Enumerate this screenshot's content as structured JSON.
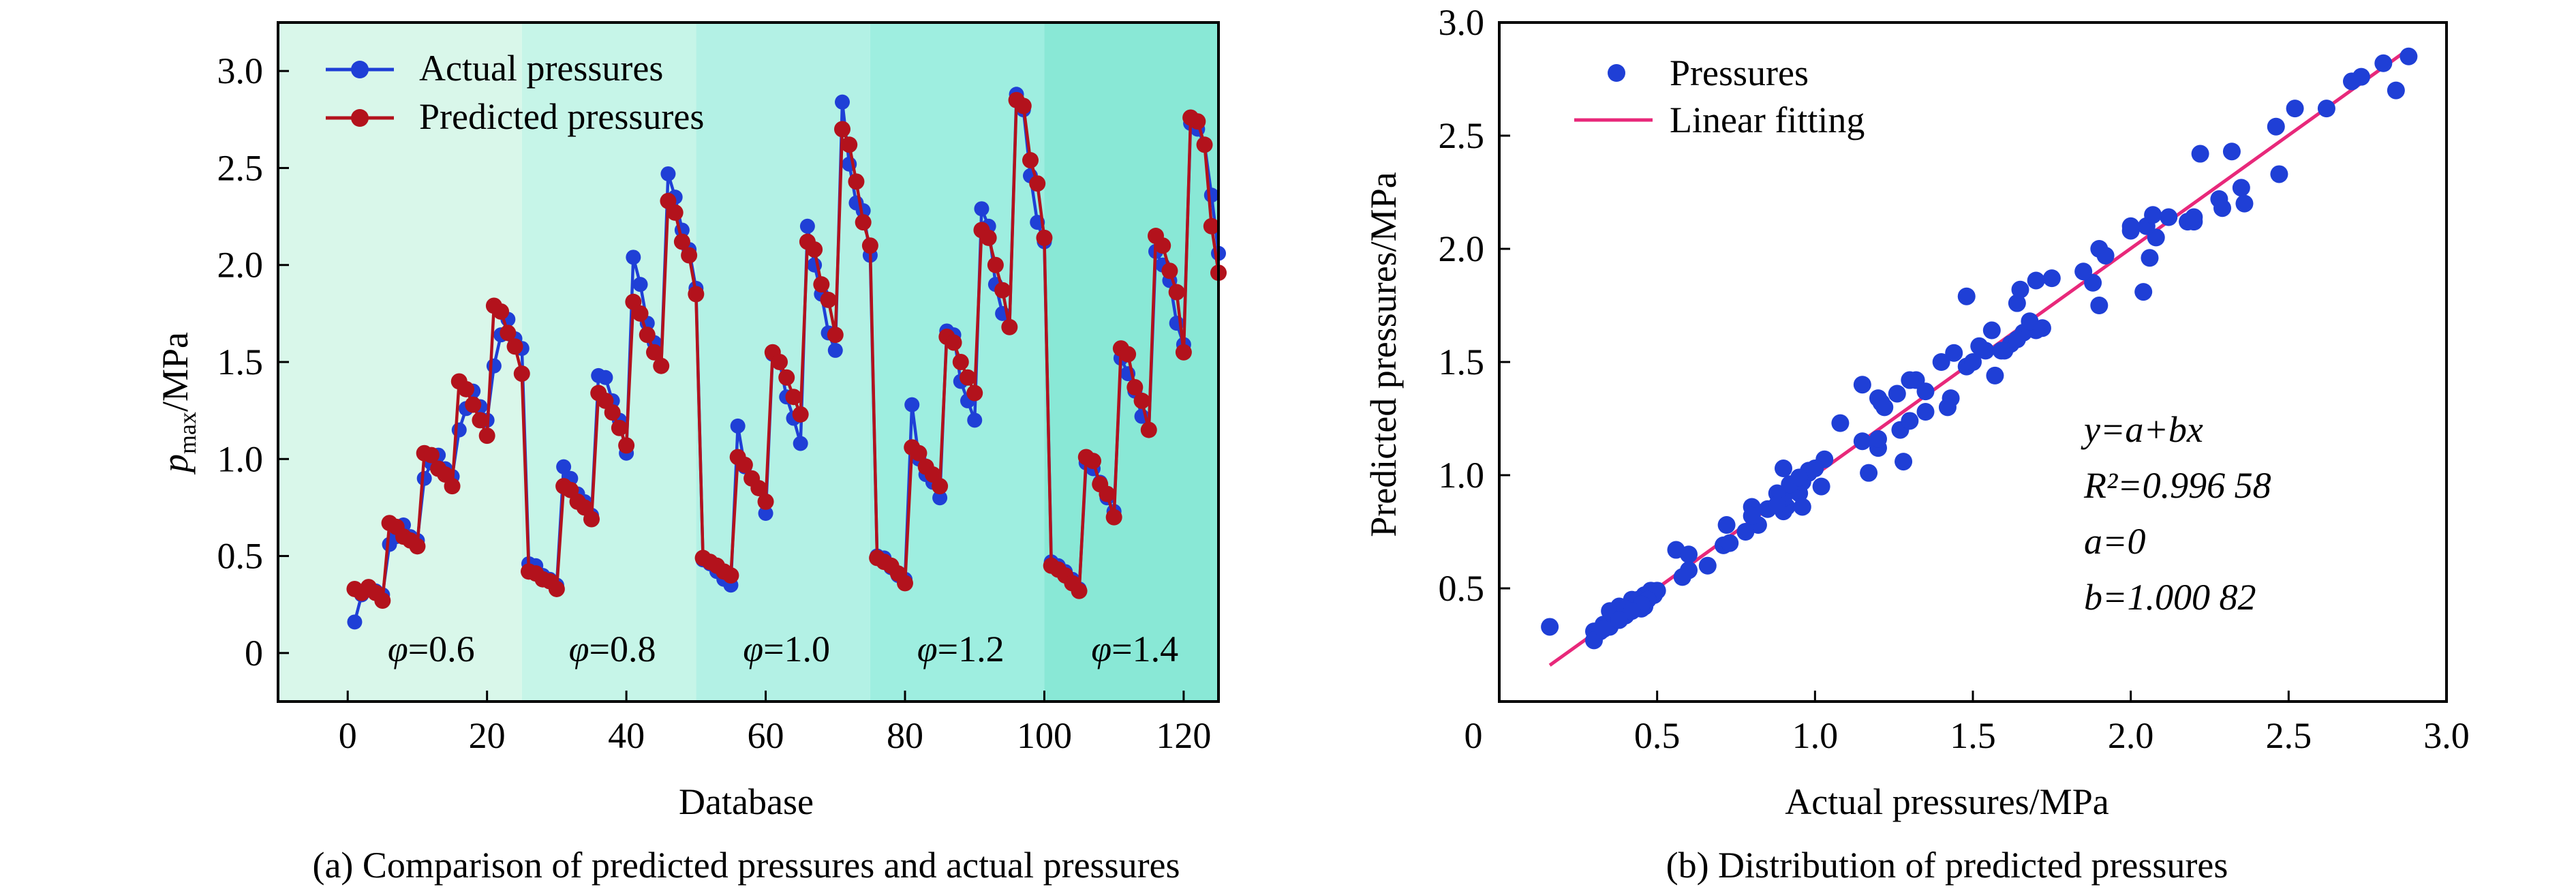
{
  "chart_data": [
    {
      "type": "line",
      "caption": "(a) Comparison of predicted pressures and actual pressures",
      "xlabel": "Database",
      "ylabel_main": "p",
      "ylabel_sub": "max",
      "ylabel_unit": "/MPa",
      "xlim": [
        -10,
        125
      ],
      "ylim": [
        -0.25,
        3.25
      ],
      "xticks": [
        0,
        20,
        40,
        60,
        80,
        100,
        120
      ],
      "xtick_labels": [
        "0",
        "20",
        "40",
        "60",
        "80",
        "100",
        "120"
      ],
      "yticks": [
        0,
        0.5,
        1.0,
        1.5,
        2.0,
        2.5,
        3.0
      ],
      "ytick_labels": [
        "0",
        "0.5",
        "1.0",
        "1.5",
        "2.0",
        "2.5",
        "3.0"
      ],
      "legend": {
        "position": "top-left",
        "entries": [
          "Actual pressures",
          "Predicted pressures"
        ]
      },
      "regions": [
        {
          "from": -10,
          "to": 25,
          "symbol": "φ",
          "label": "=0.6",
          "color": "#d9f7ea"
        },
        {
          "from": 25,
          "to": 50,
          "symbol": "φ",
          "label": "=0.8",
          "color": "#c6f5e8"
        },
        {
          "from": 50,
          "to": 75,
          "symbol": "φ",
          "label": "=1.0",
          "color": "#b3f1e5"
        },
        {
          "from": 75,
          "to": 100,
          "symbol": "φ",
          "label": "=1.2",
          "color": "#9eeee0"
        },
        {
          "from": 100,
          "to": 125,
          "symbol": "φ",
          "label": "=1.4",
          "color": "#89e8d6"
        }
      ],
      "series": [
        {
          "name": "Actual pressures",
          "color": "#1f3fd6",
          "values": [
            0.16,
            0.3,
            0.33,
            0.32,
            0.3,
            0.56,
            0.6,
            0.66,
            0.6,
            0.58,
            0.9,
            0.98,
            1.02,
            0.95,
            0.91,
            1.15,
            1.26,
            1.35,
            1.27,
            1.2,
            1.48,
            1.64,
            1.72,
            1.62,
            1.57,
            0.46,
            0.45,
            0.4,
            0.38,
            0.35,
            0.96,
            0.9,
            0.82,
            0.78,
            0.71,
            1.43,
            1.42,
            1.3,
            1.2,
            1.03,
            2.04,
            1.9,
            1.7,
            1.6,
            1.48,
            2.47,
            2.35,
            2.18,
            2.08,
            1.88,
            0.48,
            0.46,
            0.42,
            0.38,
            0.35,
            1.17,
            0.96,
            0.9,
            0.85,
            0.72,
            1.54,
            1.5,
            1.32,
            1.21,
            1.08,
            2.2,
            2.0,
            1.85,
            1.65,
            1.56,
            2.84,
            2.52,
            2.32,
            2.28,
            2.05,
            0.5,
            0.49,
            0.44,
            0.4,
            0.38,
            1.28,
            1.0,
            0.92,
            0.88,
            0.8,
            1.66,
            1.64,
            1.4,
            1.3,
            1.2,
            2.29,
            2.2,
            1.9,
            1.75,
            1.68,
            2.88,
            2.8,
            2.46,
            2.22,
            2.12,
            0.47,
            0.45,
            0.42,
            0.38,
            0.33,
            0.98,
            0.95,
            0.88,
            0.8,
            0.73,
            1.52,
            1.44,
            1.35,
            1.22,
            1.15,
            2.07,
            2.0,
            1.92,
            1.7,
            1.59,
            2.73,
            2.7,
            2.62,
            2.36,
            2.06
          ]
        },
        {
          "name": "Predicted pressures",
          "color": "#b3121c",
          "values": [
            0.33,
            0.31,
            0.34,
            0.31,
            0.27,
            0.67,
            0.65,
            0.6,
            0.58,
            0.55,
            1.03,
            1.02,
            0.95,
            0.92,
            0.86,
            1.4,
            1.36,
            1.28,
            1.2,
            1.12,
            1.79,
            1.76,
            1.65,
            1.58,
            1.44,
            0.42,
            0.41,
            0.38,
            0.37,
            0.33,
            0.86,
            0.84,
            0.78,
            0.75,
            0.69,
            1.34,
            1.3,
            1.24,
            1.16,
            1.07,
            1.81,
            1.75,
            1.64,
            1.55,
            1.48,
            2.33,
            2.27,
            2.12,
            2.05,
            1.85,
            0.49,
            0.47,
            0.45,
            0.42,
            0.4,
            1.01,
            0.97,
            0.9,
            0.85,
            0.78,
            1.55,
            1.5,
            1.42,
            1.32,
            1.23,
            2.12,
            2.08,
            1.9,
            1.82,
            1.64,
            2.7,
            2.62,
            2.43,
            2.22,
            2.1,
            0.49,
            0.47,
            0.45,
            0.41,
            0.36,
            1.06,
            1.03,
            0.96,
            0.92,
            0.86,
            1.63,
            1.6,
            1.5,
            1.42,
            1.34,
            2.18,
            2.14,
            2.0,
            1.87,
            1.68,
            2.85,
            2.82,
            2.54,
            2.42,
            2.14,
            0.45,
            0.43,
            0.4,
            0.36,
            0.32,
            1.01,
            0.99,
            0.87,
            0.82,
            0.7,
            1.57,
            1.54,
            1.37,
            1.3,
            1.15,
            2.15,
            2.1,
            1.97,
            1.86,
            1.55,
            2.76,
            2.74,
            2.62,
            2.2,
            1.96
          ]
        }
      ]
    },
    {
      "type": "scatter",
      "caption": "(b) Distribution of predicted pressures",
      "xlabel": "Actual pressures/MPa",
      "ylabel": "Predicted pressures/MPa",
      "xlim": [
        0,
        3.0
      ],
      "ylim": [
        0,
        3.0
      ],
      "xticks": [
        0,
        0.5,
        1.0,
        1.5,
        2.0,
        2.5,
        3.0
      ],
      "xtick_labels": [
        "0",
        "0.5",
        "1.0",
        "1.5",
        "2.0",
        "2.5",
        "3.0"
      ],
      "yticks": [
        0.5,
        1.0,
        1.5,
        2.0,
        2.5,
        3.0
      ],
      "ytick_labels": [
        "0.5",
        "1.0",
        "1.5",
        "2.0",
        "2.5",
        "3.0"
      ],
      "legend": {
        "position": "top-left",
        "entries": [
          "Pressures",
          "Linear fitting"
        ]
      },
      "fit": {
        "a": 0,
        "b": 1.00082,
        "x_range": [
          0.16,
          2.88
        ],
        "color": "#e8287a"
      },
      "annotation_lines": [
        "y=a+bx",
        "R²=0.996 58",
        "a=0",
        "b=1.000 82"
      ],
      "point_color": "#1f3fd6",
      "points_x": [
        0.16,
        0.3,
        0.33,
        0.32,
        0.3,
        0.56,
        0.6,
        0.66,
        0.6,
        0.58,
        0.9,
        0.98,
        1.02,
        0.95,
        0.91,
        1.15,
        1.26,
        1.35,
        1.27,
        1.2,
        1.48,
        1.64,
        1.72,
        1.62,
        1.57,
        0.46,
        0.45,
        0.4,
        0.38,
        0.35,
        0.96,
        0.9,
        0.82,
        0.78,
        0.71,
        1.43,
        1.42,
        1.3,
        1.2,
        1.03,
        2.04,
        1.9,
        1.7,
        1.6,
        1.48,
        2.47,
        2.35,
        2.18,
        2.08,
        1.88,
        0.48,
        0.46,
        0.42,
        0.38,
        0.35,
        1.17,
        0.96,
        0.9,
        0.85,
        0.72,
        1.54,
        1.5,
        1.32,
        1.21,
        1.08,
        2.2,
        2.0,
        1.85,
        1.65,
        1.56,
        2.84,
        2.52,
        2.32,
        2.28,
        2.05,
        0.5,
        0.49,
        0.44,
        0.4,
        0.38,
        1.28,
        1.0,
        0.92,
        0.88,
        0.8,
        1.66,
        1.64,
        1.4,
        1.3,
        1.2,
        2.29,
        2.2,
        1.9,
        1.75,
        1.68,
        2.88,
        2.8,
        2.46,
        2.22,
        2.12,
        0.47,
        0.45,
        0.42,
        0.38,
        0.33,
        0.98,
        0.95,
        0.88,
        0.8,
        0.73,
        1.52,
        1.44,
        1.35,
        1.22,
        1.15,
        2.07,
        2.0,
        1.92,
        1.7,
        1.59,
        2.73,
        2.7,
        2.62,
        2.36,
        2.06
      ],
      "points_y": [
        0.33,
        0.31,
        0.34,
        0.31,
        0.27,
        0.67,
        0.65,
        0.6,
        0.58,
        0.55,
        1.03,
        1.02,
        0.95,
        0.92,
        0.86,
        1.4,
        1.36,
        1.28,
        1.2,
        1.12,
        1.79,
        1.76,
        1.65,
        1.58,
        1.44,
        0.42,
        0.41,
        0.38,
        0.37,
        0.33,
        0.86,
        0.84,
        0.78,
        0.75,
        0.69,
        1.34,
        1.3,
        1.24,
        1.16,
        1.07,
        1.81,
        1.75,
        1.64,
        1.55,
        1.48,
        2.33,
        2.27,
        2.12,
        2.05,
        1.85,
        0.49,
        0.47,
        0.45,
        0.42,
        0.4,
        1.01,
        0.97,
        0.9,
        0.85,
        0.78,
        1.55,
        1.5,
        1.42,
        1.32,
        1.23,
        2.12,
        2.08,
        1.9,
        1.82,
        1.64,
        2.7,
        2.62,
        2.43,
        2.22,
        2.1,
        0.49,
        0.47,
        0.45,
        0.41,
        0.36,
        1.06,
        1.03,
        0.96,
        0.92,
        0.86,
        1.63,
        1.6,
        1.5,
        1.42,
        1.34,
        2.18,
        2.14,
        2.0,
        1.87,
        1.68,
        2.85,
        2.82,
        2.54,
        2.42,
        2.14,
        0.45,
        0.43,
        0.4,
        0.36,
        0.32,
        1.01,
        0.99,
        0.87,
        0.82,
        0.7,
        1.57,
        1.54,
        1.37,
        1.3,
        1.15,
        2.15,
        2.1,
        1.97,
        1.86,
        1.55,
        2.76,
        2.74,
        2.62,
        2.2,
        1.96
      ]
    }
  ]
}
